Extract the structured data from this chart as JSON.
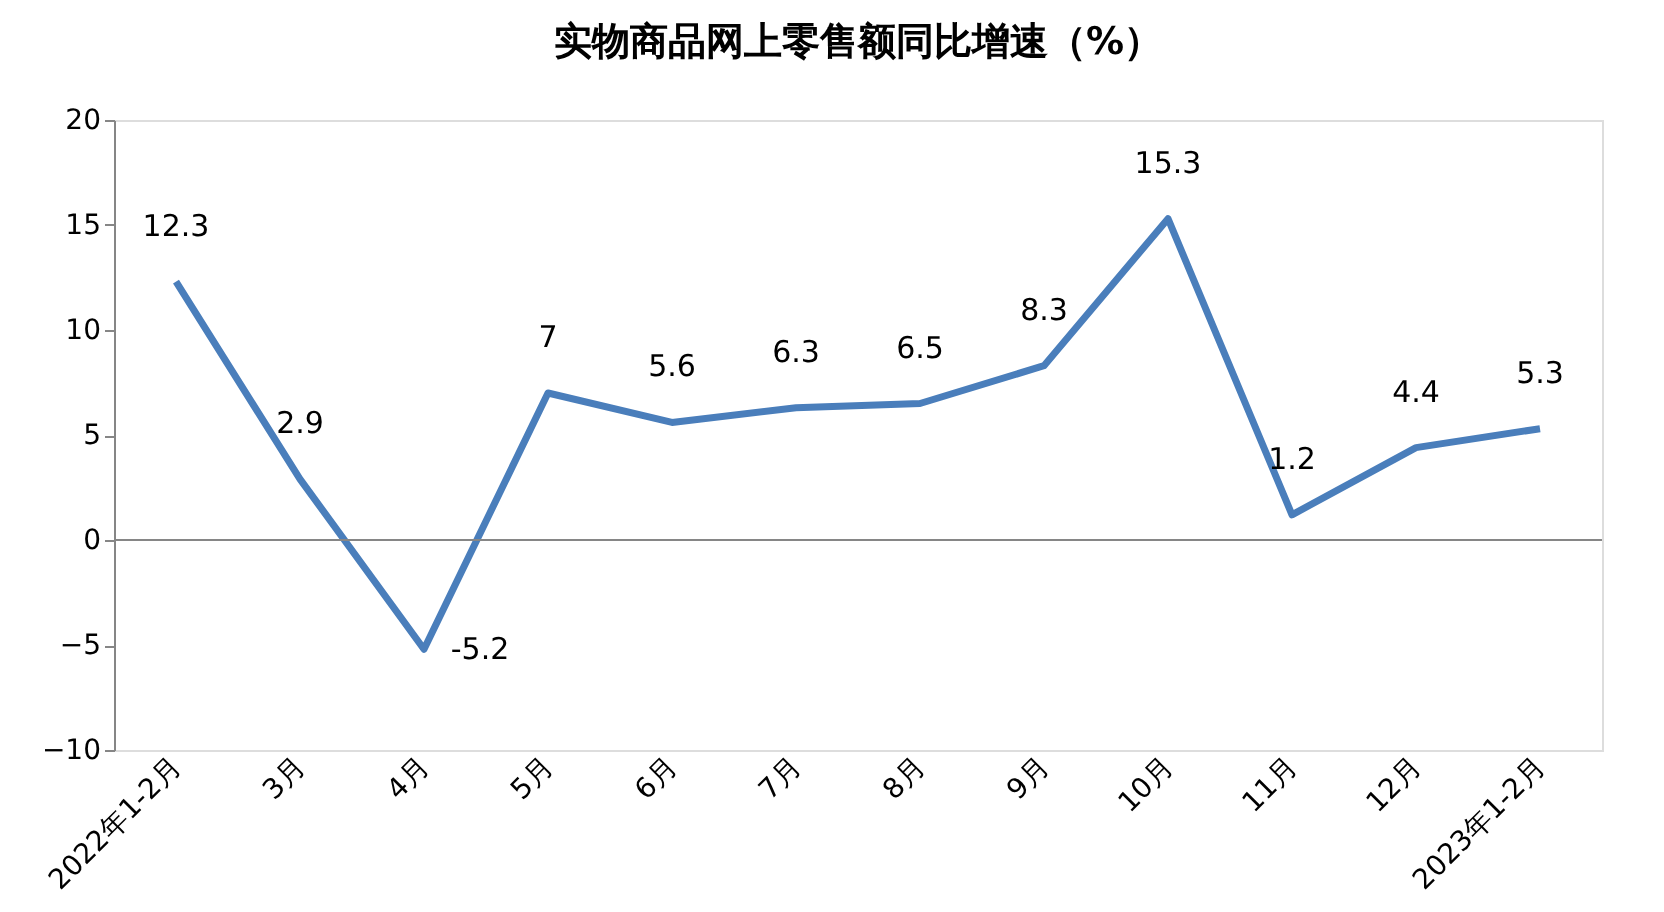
{
  "chart_data": {
    "type": "line",
    "title": "实物商品网上零售额同比增速（%）",
    "categories": [
      "2022年1-2月",
      "3月",
      "4月",
      "5月",
      "6月",
      "7月",
      "8月",
      "9月",
      "10月",
      "11月",
      "12月",
      "2023年1-2月"
    ],
    "series": [
      {
        "color": "#4a7ebb",
        "values": [
          12.3,
          2.9,
          -5.2,
          7,
          5.6,
          6.3,
          6.5,
          8.3,
          15.3,
          1.2,
          4.4,
          5.3
        ]
      }
    ],
    "ylim": [
      -10,
      20
    ],
    "yticks": [
      -10,
      -5,
      0,
      5,
      10,
      15,
      20
    ],
    "ref_lines": [
      {
        "axis": "y",
        "value": 0,
        "color": "#868686"
      }
    ],
    "data_labels": true,
    "grid": false,
    "legend": false,
    "marker": "none",
    "line_style": "solid"
  }
}
